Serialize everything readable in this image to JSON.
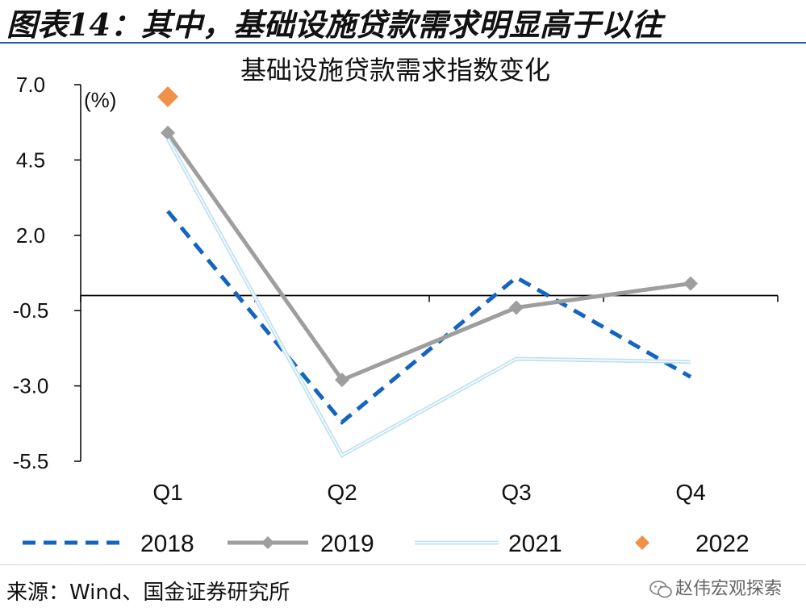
{
  "figure_title": "图表14：其中，基础设施贷款需求明显高于以往",
  "source_note": "来源：Wind、国金证券研究所",
  "watermark": "赵伟宏观探索",
  "colors": {
    "s2018": "#1565c0",
    "s2019": "#9e9e9e",
    "s2021": "#bfe2f2",
    "s2022": "#f0914a",
    "axis": "#000000",
    "rule": "#1f5ea8"
  },
  "chart_data": {
    "type": "line",
    "title": "基础设施贷款需求指数变化",
    "ylabel": "(%)",
    "xlabel": "",
    "categories": [
      "Q1",
      "Q2",
      "Q3",
      "Q4"
    ],
    "ylim": [
      -5.5,
      7.0
    ],
    "yticks": [
      7.0,
      4.5,
      2.0,
      -0.5,
      -3.0,
      -5.5
    ],
    "ytick_labels": [
      "7.0",
      "4.5",
      "2.0",
      "-0.5",
      "-3.0",
      "-5.5"
    ],
    "baseline": 0,
    "series": [
      {
        "name": "2018",
        "values": [
          2.8,
          -4.2,
          0.6,
          -2.7
        ]
      },
      {
        "name": "2019",
        "values": [
          5.4,
          -2.8,
          -0.4,
          0.4
        ]
      },
      {
        "name": "2021",
        "values": [
          5.2,
          -5.3,
          -2.1,
          -2.2
        ]
      },
      {
        "name": "2022",
        "values": [
          6.6,
          null,
          null,
          null
        ]
      }
    ]
  }
}
